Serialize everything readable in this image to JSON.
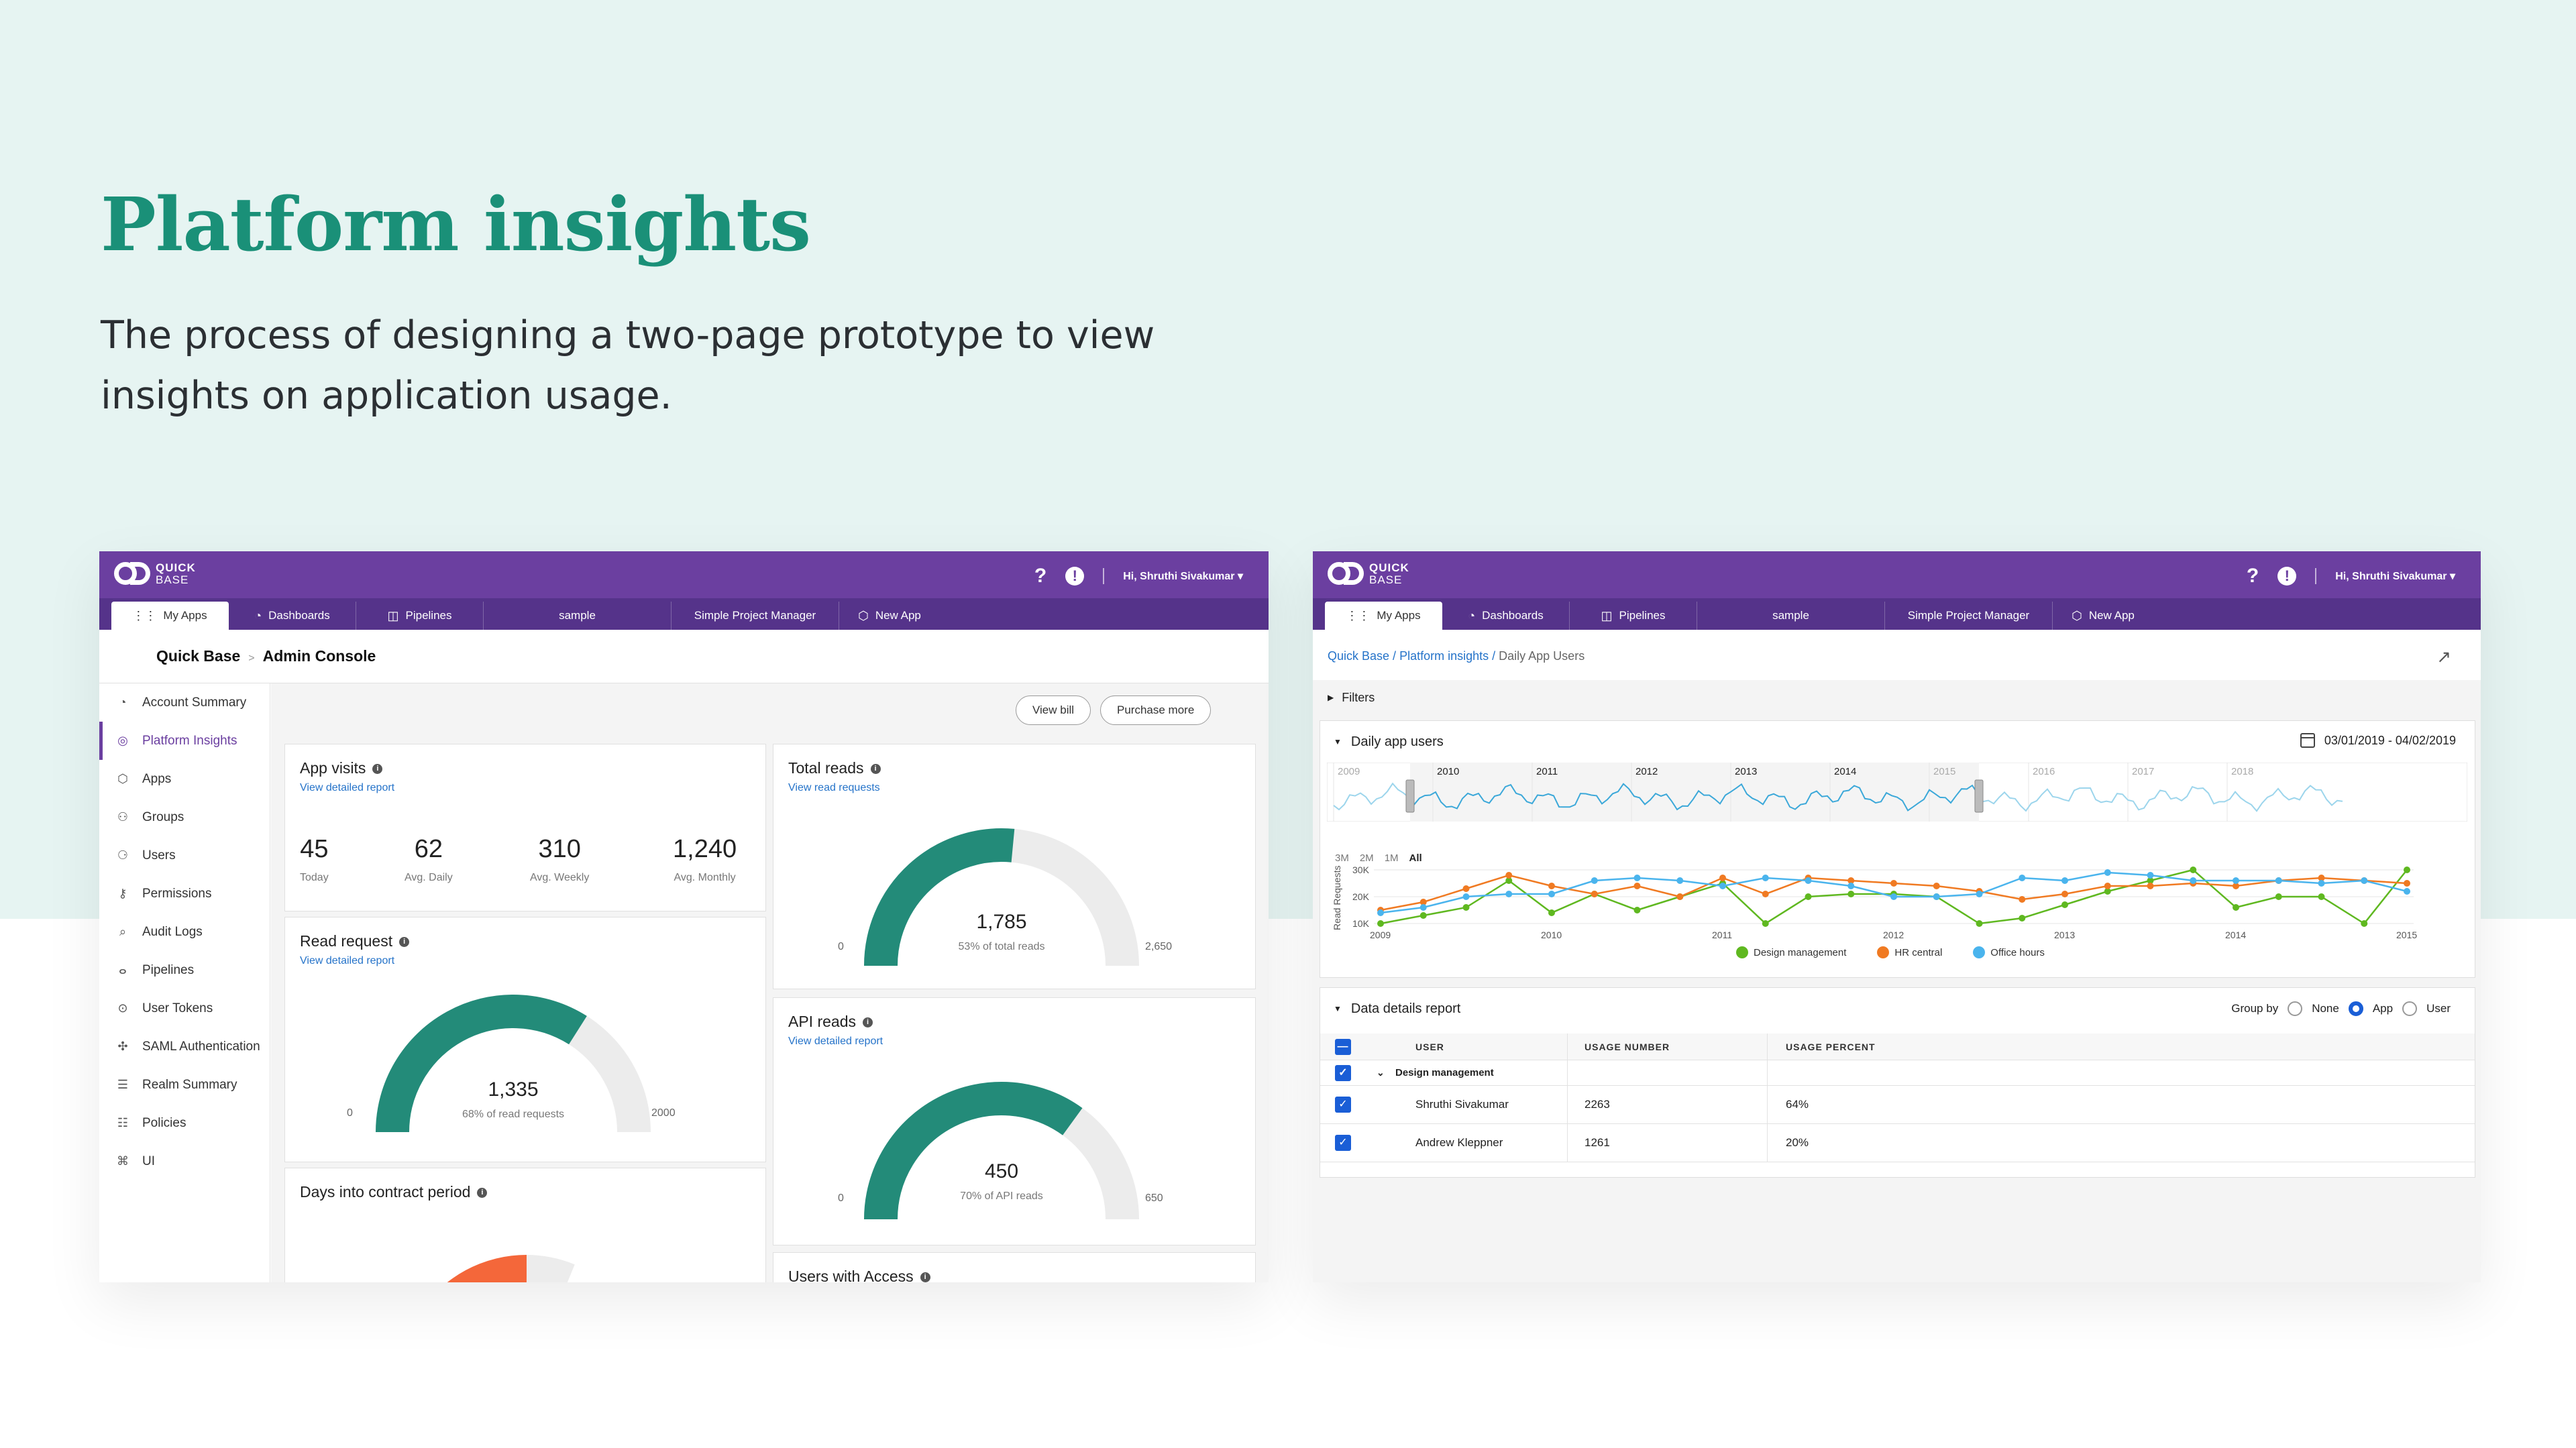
{
  "hero": {
    "title": "Platform insights",
    "subtitle": "The process of designing a two-page prototype to view insights on application usage."
  },
  "app": {
    "logo_top": "QUICK",
    "logo_bottom": "BASE",
    "help_icon": "?",
    "alert_icon": "!",
    "user": "Hi, Shruthi Sivakumar",
    "tabs": [
      "My Apps",
      "Dashboards",
      "Pipelines",
      "sample",
      "Simple Project Manager",
      "New App"
    ]
  },
  "left": {
    "breadcrumb_root": "Quick Base",
    "breadcrumb_page": "Admin Console",
    "sidebar": [
      {
        "label": "Account Summary",
        "icon": "gauge-icon"
      },
      {
        "label": "Platform Insights",
        "icon": "insights-icon"
      },
      {
        "label": "Apps",
        "icon": "apps-icon"
      },
      {
        "label": "Groups",
        "icon": "groups-icon"
      },
      {
        "label": "Users",
        "icon": "users-icon"
      },
      {
        "label": "Permissions",
        "icon": "key-icon"
      },
      {
        "label": "Audit Logs",
        "icon": "audit-icon"
      },
      {
        "label": "Pipelines",
        "icon": "pipelines-icon"
      },
      {
        "label": "User Tokens",
        "icon": "token-icon"
      },
      {
        "label": "SAML Authentication",
        "icon": "saml-icon"
      },
      {
        "label": "Realm Summary",
        "icon": "realm-icon"
      },
      {
        "label": "Policies",
        "icon": "policies-icon"
      },
      {
        "label": "UI",
        "icon": "ui-icon"
      }
    ],
    "buttons": {
      "view_bill": "View bill",
      "purchase_more": "Purchase more"
    },
    "app_visits": {
      "title": "App visits",
      "link": "View detailed report",
      "stats": [
        {
          "value": "45",
          "label": "Today"
        },
        {
          "value": "62",
          "label": "Avg. Daily"
        },
        {
          "value": "310",
          "label": "Avg. Weekly"
        },
        {
          "value": "1,240",
          "label": "Avg. Monthly"
        }
      ]
    },
    "read_request": {
      "title": "Read request",
      "link": "View detailed report",
      "value": "1,335",
      "sub": "68% of read requests",
      "min": "0",
      "max": "2000",
      "fraction": 0.68
    },
    "total_reads": {
      "title": "Total reads",
      "link": "View read requests",
      "value": "1,785",
      "sub": "53% of total reads",
      "min": "0",
      "max": "2,650",
      "fraction": 0.53
    },
    "api_reads": {
      "title": "API reads",
      "link": "View detailed report",
      "value": "450",
      "sub": "70% of API reads",
      "min": "0",
      "max": "650",
      "fraction": 0.7
    },
    "days_contract": {
      "title": "Days into contract period"
    },
    "users_access": {
      "title": "Users with Access"
    }
  },
  "right": {
    "breadcrumb": [
      "Quick Base",
      "Platform insights"
    ],
    "breadcrumb_current": "Daily App Users",
    "filters": "Filters",
    "chart_card_title": "Daily app users",
    "date_range": "03/01/2019 - 04/02/2019",
    "navigator_years": [
      "2009",
      "2010",
      "2011",
      "2012",
      "2013",
      "2014",
      "2015",
      "2016",
      "2017",
      "2018"
    ],
    "range_buttons": [
      "3M",
      "2M",
      "1M",
      "All"
    ],
    "range_selected": "All",
    "details_title": "Data details report",
    "group_by_label": "Group by",
    "group_options": [
      "None",
      "App",
      "User"
    ],
    "group_selected": "App",
    "table": {
      "headers": [
        "USER",
        "USAGE NUMBER",
        "USAGE PERCENT"
      ],
      "group": "Design management",
      "rows": [
        {
          "user": "Shruthi Sivakumar",
          "number": "2263",
          "percent": "64%"
        },
        {
          "user": "Andrew Kleppner",
          "number": "1261",
          "percent": "20%"
        }
      ]
    }
  },
  "chart_data": {
    "type": "line",
    "xlabel": "",
    "ylabel": "Read Requests usage",
    "x_ticks": [
      "2009",
      "2010",
      "2011",
      "2012",
      "2013",
      "2014",
      "2015"
    ],
    "y_ticks": [
      "10K",
      "20K",
      "30K"
    ],
    "ylim": [
      10000,
      30000
    ],
    "xlim": [
      0,
      24
    ],
    "x": [
      0,
      1,
      2,
      3,
      4,
      5,
      6,
      7,
      8,
      9,
      10,
      11,
      12,
      13,
      14,
      15,
      16,
      17,
      18,
      19,
      20,
      21,
      22,
      23,
      24
    ],
    "series": [
      {
        "name": "Design management",
        "color": "#5fb820",
        "values": [
          10000,
          13000,
          16000,
          26000,
          14000,
          21000,
          15000,
          20000,
          25000,
          10000,
          20000,
          21000,
          21000,
          20000,
          10000,
          12000,
          17000,
          22000,
          26000,
          30000,
          16000,
          20000,
          20000,
          10000,
          30000
        ]
      },
      {
        "name": "HR central",
        "color": "#f07a22",
        "values": [
          15000,
          18000,
          23000,
          28000,
          24000,
          21000,
          24000,
          20000,
          27000,
          21000,
          27000,
          26000,
          25000,
          24000,
          22000,
          19000,
          21000,
          24000,
          24000,
          25000,
          24000,
          26000,
          27000,
          26000,
          25000
        ]
      },
      {
        "name": "Office hours",
        "color": "#4ab4ed",
        "values": [
          14000,
          16000,
          20000,
          21000,
          21000,
          26000,
          27000,
          26000,
          24000,
          27000,
          26000,
          24000,
          20000,
          20000,
          21000,
          27000,
          26000,
          29000,
          28000,
          26000,
          26000,
          26000,
          25000,
          26000,
          22000
        ]
      }
    ],
    "grid": true,
    "legend": "bottom"
  }
}
